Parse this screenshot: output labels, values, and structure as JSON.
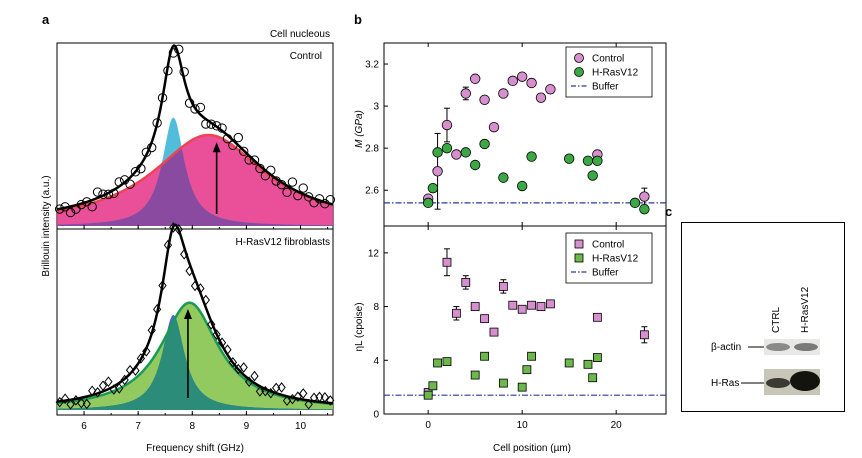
{
  "figure": {
    "panel_a": "a",
    "panel_b": "b",
    "panel_c": "c"
  },
  "chart_data": [
    {
      "type": "scatter",
      "panel": "a-top",
      "title": "Cell nucleous",
      "subtitle": "Control",
      "xlabel": "Frequency shift (GHz)",
      "ylabel": "Brillouin intensity (a.u.)",
      "xlim": [
        5.5,
        10.6
      ],
      "xticks": [
        6,
        7,
        8,
        9,
        10
      ],
      "peaks": [
        {
          "center": 7.65,
          "hwhm": 0.25,
          "amp": 0.62,
          "color": "#3fb6d6"
        },
        {
          "center": 8.3,
          "hwhm": 1.25,
          "amp": 0.52,
          "color": "#e83c8e"
        }
      ],
      "overlap_color": "#8a4aa0",
      "fit_color": "#000000",
      "marker": "circle",
      "arrow_x": 8.45,
      "colors": {
        "envelope": "#ee4450"
      }
    },
    {
      "type": "scatter",
      "panel": "a-bottom",
      "title": "H-RasV12 fibroblasts",
      "xlabel": "Frequency shift (GHz)",
      "xlim": [
        5.5,
        10.6
      ],
      "xticks": [
        6,
        7,
        8,
        9,
        10
      ],
      "peaks": [
        {
          "center": 7.65,
          "hwhm": 0.25,
          "amp": 0.55,
          "color": "#3a55c8"
        },
        {
          "center": 7.95,
          "hwhm": 0.65,
          "amp": 0.62,
          "color": "#86c44e"
        }
      ],
      "overlap_color": "#2c8c7a",
      "fit_color": "#000000",
      "marker": "diamond",
      "arrow_x": 7.92,
      "colors": {
        "envelope": "#1a9a55"
      }
    },
    {
      "type": "scatter",
      "panel": "b-top",
      "ylabel": "M (GPa)",
      "xlim": [
        -4.7,
        25.3
      ],
      "ylim": [
        2.43,
        3.3
      ],
      "yticks": [
        2.6,
        2.8,
        3.0,
        3.2
      ],
      "series": [
        {
          "name": "Control",
          "color": "#d78fce",
          "marker": "circle",
          "points": [
            [
              0,
              2.56,
              0
            ],
            [
              1,
              2.69,
              0.18
            ],
            [
              2,
              2.91,
              0.08
            ],
            [
              3,
              2.77,
              0
            ],
            [
              4,
              3.06,
              0.03
            ],
            [
              5,
              3.13,
              0
            ],
            [
              6,
              3.03,
              0
            ],
            [
              7,
              2.9,
              0
            ],
            [
              8,
              3.06,
              0
            ],
            [
              9,
              3.12,
              0
            ],
            [
              10,
              3.14,
              0
            ],
            [
              11,
              3.11,
              0
            ],
            [
              12,
              3.04,
              0
            ],
            [
              13,
              3.08,
              0
            ],
            [
              18,
              2.77,
              0
            ],
            [
              23,
              2.57,
              0.04
            ]
          ]
        },
        {
          "name": "H-RasV12",
          "color": "#3aa845",
          "marker": "circle",
          "points": [
            [
              0,
              2.54,
              0
            ],
            [
              0.5,
              2.61,
              0
            ],
            [
              1,
              2.78,
              0
            ],
            [
              2,
              2.8,
              0
            ],
            [
              4,
              2.78,
              0
            ],
            [
              5,
              2.72,
              0
            ],
            [
              6,
              2.82,
              0
            ],
            [
              8,
              2.66,
              0
            ],
            [
              10,
              2.62,
              0
            ],
            [
              11,
              2.76,
              0
            ],
            [
              15,
              2.75,
              0
            ],
            [
              17,
              2.74,
              0
            ],
            [
              18,
              2.74,
              0
            ],
            [
              17.5,
              2.67,
              0
            ],
            [
              22,
              2.54,
              0
            ],
            [
              23,
              2.51,
              0
            ]
          ]
        }
      ],
      "reference": {
        "name": "Buffer",
        "value": 2.54,
        "color": "#2a3a9a"
      }
    },
    {
      "type": "scatter",
      "panel": "b-bottom",
      "ylabel": "ηL (cpoise)",
      "xlabel": "Cell position (µm)",
      "xlim": [
        -4.7,
        25.3
      ],
      "xticks": [
        0,
        10,
        20
      ],
      "ylim": [
        0,
        14
      ],
      "yticks": [
        0,
        4,
        8,
        12
      ],
      "series": [
        {
          "name": "Control",
          "color": "#d78fce",
          "marker": "square",
          "points": [
            [
              0,
              1.6,
              0
            ],
            [
              2,
              11.3,
              1.0
            ],
            [
              3,
              7.5,
              0.5
            ],
            [
              4,
              9.8,
              0.5
            ],
            [
              5,
              8.0,
              0
            ],
            [
              6,
              7.1,
              0
            ],
            [
              7,
              6.1,
              0
            ],
            [
              8,
              9.5,
              0.5
            ],
            [
              9,
              8.1,
              0
            ],
            [
              10,
              7.8,
              0
            ],
            [
              11,
              8.1,
              0
            ],
            [
              12,
              8.0,
              0
            ],
            [
              13,
              8.2,
              0
            ],
            [
              18,
              7.2,
              0
            ],
            [
              23,
              5.9,
              0.6
            ]
          ]
        },
        {
          "name": "H-RasV12",
          "color": "#6cb84a",
          "marker": "square",
          "points": [
            [
              0,
              1.4,
              0
            ],
            [
              0.5,
              2.1,
              0
            ],
            [
              1,
              3.8,
              0
            ],
            [
              2,
              3.9,
              0
            ],
            [
              5,
              2.9,
              0
            ],
            [
              6,
              4.3,
              0
            ],
            [
              8,
              2.3,
              0
            ],
            [
              10,
              2.0,
              0
            ],
            [
              10.5,
              3.3,
              0
            ],
            [
              11,
              4.3,
              0
            ],
            [
              15,
              3.8,
              0
            ],
            [
              17,
              3.7,
              0
            ],
            [
              18,
              4.2,
              0
            ],
            [
              17.5,
              2.7,
              0
            ]
          ]
        }
      ],
      "reference": {
        "name": "Buffer",
        "value": 1.4,
        "color": "#2a3a9a"
      }
    }
  ],
  "blot": {
    "columns": [
      "CTRL",
      "H-RasV12"
    ],
    "rows": [
      "β-actin",
      "H-Ras"
    ]
  }
}
